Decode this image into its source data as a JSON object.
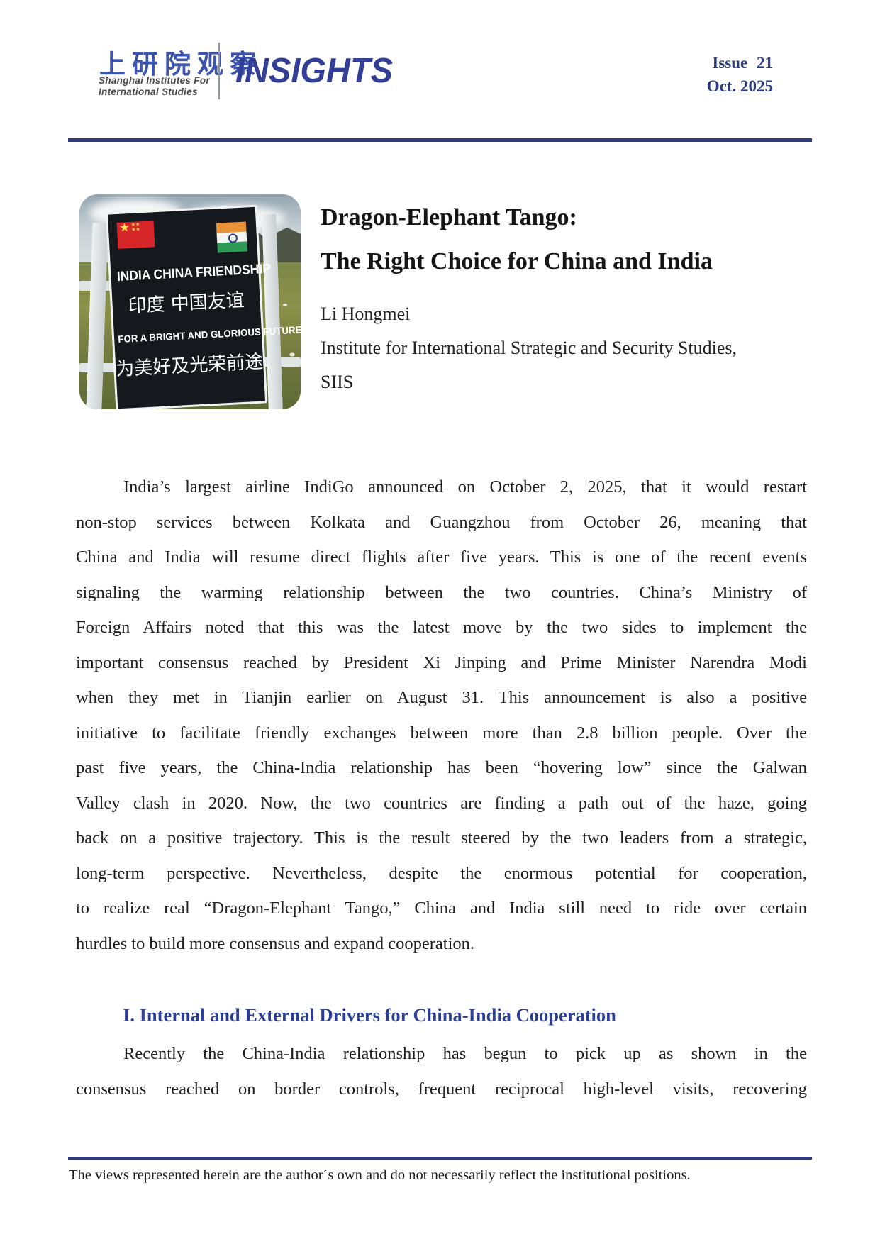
{
  "header": {
    "logo_calligraphy": "上研院观察",
    "logo_subtitle_line1": "Shanghai Institutes For",
    "logo_subtitle_line2": "International Studies",
    "masthead": "INSIGHTS",
    "issue": "Issue 21",
    "date": "Oct. 2025"
  },
  "article": {
    "title_line1": "Dragon-Elephant Tango:",
    "title_line2": "The Right Choice for China and India",
    "author": "Li Hongmei",
    "affiliation_line1": "Institute for International Strategic and Security Studies,",
    "affiliation_line2": "SIIS",
    "photo": {
      "alt": "Roadside signboard with Chinese and Indian flags on a grassy mountain pass",
      "sign_line1": "INDIA CHINA FRIENDSHIP",
      "sign_line2": "印度 中国友谊",
      "sign_line3": "FOR A BRIGHT AND GLORIOUS FUTURE",
      "sign_line4": "为美好及光荣前途"
    },
    "paragraph1_lines": [
      "India’s largest airline IndiGo announced on October 2, 2025, that it would restart",
      "non-stop services between Kolkata and Guangzhou from October 26, meaning that",
      "China and India will resume direct flights after five years. This is one of the recent events",
      "signaling the warming relationship between the two countries. China’s Ministry of",
      "Foreign Affairs noted that this was the latest move by the two sides to implement the",
      "important consensus reached by President Xi Jinping and Prime Minister Narendra Modi",
      "when they met in Tianjin earlier on August 31. This announcement is also a positive",
      "initiative to facilitate friendly exchanges between more than 2.8 billion people. Over the",
      "past five years, the China-India relationship has been “hovering low” since the Galwan",
      "Valley clash in 2020. Now, the two countries are finding a path out of the haze, going",
      "back on a positive trajectory. This is the result steered by the two leaders from a strategic,",
      "long-term perspective. Nevertheless, despite the enormous potential for cooperation,",
      "to realize real “Dragon-Elephant Tango,” China and India still need to ride over certain",
      "hurdles to build more consensus and expand cooperation."
    ],
    "section1_heading": "I. Internal and External Drivers for China-India Cooperation",
    "section1_lines": [
      "Recently the China-India relationship has begun to pick up as shown in the",
      "consensus reached on border controls, frequent reciprocal high-level visits, recovering"
    ]
  },
  "footer": {
    "disclaimer": "The views represented herein are the author´s own and do not necessarily reflect the institutional positions."
  },
  "colors": {
    "accent_blue": "#2e3a80",
    "heading_blue": "#2b3f96",
    "masthead_blue": "#333e96",
    "body_text": "#231f20"
  }
}
